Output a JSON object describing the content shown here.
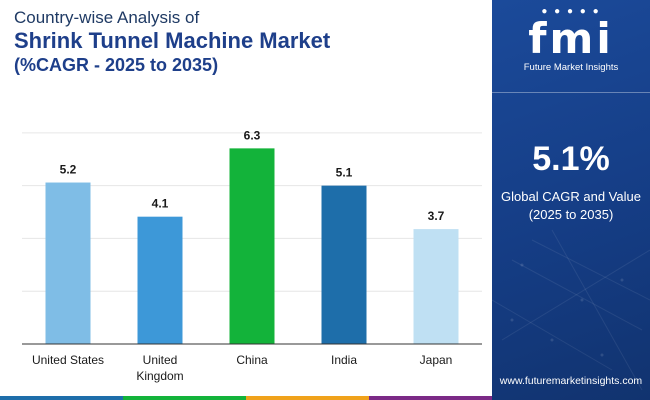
{
  "header": {
    "line1": "Country-wise Analysis of",
    "line2": "Shrink Tunnel Machine Market",
    "line3": "(%CAGR - 2025 to 2035)"
  },
  "chart_data": {
    "type": "bar",
    "title": "Shrink Tunnel Machine Market (%CAGR - 2025 to 2035)",
    "categories": [
      "United States",
      "United Kingdom",
      "China",
      "India",
      "Japan"
    ],
    "category_lines": [
      [
        "United States"
      ],
      [
        "United",
        "Kingdom"
      ],
      [
        "China"
      ],
      [
        "India"
      ],
      [
        "Japan"
      ]
    ],
    "values": [
      5.2,
      4.1,
      6.3,
      5.1,
      3.7
    ],
    "value_labels": [
      "5.2",
      "4.1",
      "6.3",
      "5.1",
      "3.7"
    ],
    "bar_colors": [
      "#7fbde6",
      "#3d98d8",
      "#13b33a",
      "#1e6eaa",
      "#bfe0f3"
    ],
    "xlabel": "",
    "ylabel": "",
    "ylim": [
      0,
      7.6
    ],
    "grid": true
  },
  "panel": {
    "logo": "fmi",
    "logo_sub": "Future Market Insights",
    "cagr_value": "5.1%",
    "cagr_label_1": "Global CAGR and Value",
    "cagr_label_2": "(2025 to 2035)",
    "website": "www.futuremarketinsights.com"
  },
  "colors": {
    "title_dark": "#1f3a64",
    "title_blue": "#1e3f8a",
    "panel_bg": "#153d85",
    "bottom_bar": [
      "#1e6eaa",
      "#13b33a",
      "#f0a21b",
      "#7b2a86"
    ]
  }
}
